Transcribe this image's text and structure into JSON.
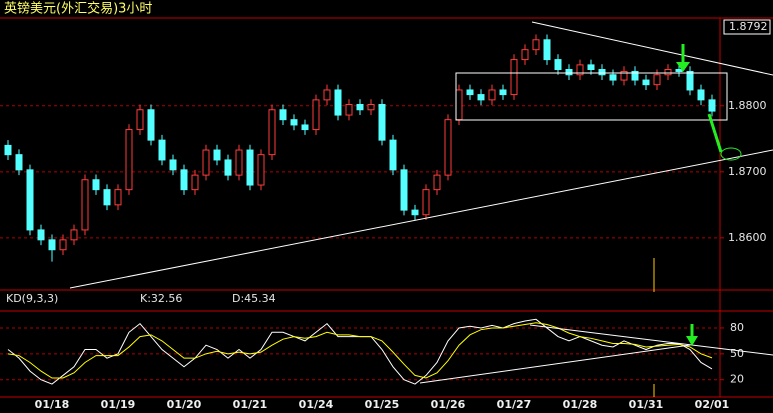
{
  "chart_data": [
    {
      "type": "candlestick",
      "title": "英镑美元(外汇交易)3小时",
      "categories": [
        null,
        null,
        null,
        null,
        "01/18",
        null,
        null,
        null,
        null,
        null,
        "01/19",
        null,
        null,
        null,
        null,
        null,
        "01/20",
        null,
        null,
        null,
        null,
        null,
        "01/21",
        null,
        null,
        null,
        null,
        null,
        "01/24",
        null,
        null,
        null,
        null,
        null,
        "01/25",
        null,
        null,
        null,
        null,
        null,
        "01/26",
        null,
        null,
        null,
        null,
        null,
        "01/27",
        null,
        null,
        null,
        null,
        null,
        "01/28",
        null,
        null,
        null,
        null,
        null,
        "01/31",
        null,
        null,
        null,
        null,
        null,
        "02/01"
      ],
      "open": [
        1.874,
        1.8726,
        1.8703,
        1.8612,
        1.8597,
        1.8582,
        1.8597,
        1.8612,
        1.8688,
        1.8673,
        1.865,
        1.8673,
        1.8764,
        1.8794,
        1.8748,
        1.8718,
        1.8703,
        1.8673,
        1.8695,
        1.8733,
        1.8718,
        1.8695,
        1.8733,
        1.868,
        1.8726,
        1.8794,
        1.8779,
        1.8771,
        1.8764,
        1.8809,
        1.8824,
        1.8786,
        1.8802,
        1.8794,
        1.8802,
        1.8748,
        1.8703,
        1.8642,
        1.8635,
        1.8673,
        1.8695,
        1.8779,
        1.8824,
        1.8817,
        1.8809,
        1.8824,
        1.8817,
        1.887,
        1.8885,
        1.89,
        1.887,
        1.8855,
        1.8847,
        1.8862,
        1.8855,
        1.8847,
        1.8839,
        1.8852,
        1.8839,
        1.8832,
        1.8847,
        1.8855,
        1.8852,
        1.8824,
        1.8809
      ],
      "high": [
        1.8748,
        1.8734,
        1.8711,
        1.862,
        1.8605,
        1.8605,
        1.862,
        1.8696,
        1.8696,
        1.8681,
        1.8681,
        1.8772,
        1.8802,
        1.8802,
        1.8756,
        1.8726,
        1.8711,
        1.8703,
        1.8741,
        1.8741,
        1.8726,
        1.8741,
        1.8741,
        1.8734,
        1.8802,
        1.8802,
        1.8787,
        1.8779,
        1.8817,
        1.8832,
        1.8832,
        1.881,
        1.881,
        1.881,
        1.881,
        1.8756,
        1.8711,
        1.865,
        1.8681,
        1.8703,
        1.8787,
        1.8832,
        1.8832,
        1.8825,
        1.8832,
        1.8832,
        1.8878,
        1.8893,
        1.8908,
        1.8908,
        1.8878,
        1.8863,
        1.887,
        1.887,
        1.8863,
        1.8855,
        1.886,
        1.886,
        1.8847,
        1.8855,
        1.8863,
        1.8863,
        1.886,
        1.8832,
        1.8817
      ],
      "low": [
        1.8718,
        1.8695,
        1.8604,
        1.8589,
        1.8564,
        1.8574,
        1.8589,
        1.8604,
        1.8665,
        1.8642,
        1.8642,
        1.8665,
        1.8756,
        1.874,
        1.871,
        1.8695,
        1.8665,
        1.8665,
        1.8687,
        1.871,
        1.8687,
        1.8687,
        1.8672,
        1.8672,
        1.8718,
        1.8771,
        1.8763,
        1.8756,
        1.8756,
        1.8801,
        1.8778,
        1.8778,
        1.8786,
        1.8786,
        1.874,
        1.8695,
        1.8634,
        1.8627,
        1.8627,
        1.8665,
        1.8687,
        1.8771,
        1.8809,
        1.8801,
        1.8801,
        1.8809,
        1.8809,
        1.8862,
        1.8877,
        1.8862,
        1.8847,
        1.8839,
        1.8839,
        1.8847,
        1.8839,
        1.8831,
        1.8831,
        1.8831,
        1.8824,
        1.8824,
        1.8839,
        1.8844,
        1.8816,
        1.8801,
        1.8784
      ],
      "close": [
        1.8726,
        1.8703,
        1.8612,
        1.8597,
        1.8582,
        1.8597,
        1.8612,
        1.8688,
        1.8673,
        1.865,
        1.8673,
        1.8764,
        1.8794,
        1.8748,
        1.8718,
        1.8703,
        1.8673,
        1.8695,
        1.8733,
        1.8718,
        1.8695,
        1.8733,
        1.868,
        1.8726,
        1.8794,
        1.8779,
        1.8771,
        1.8764,
        1.8809,
        1.8824,
        1.8786,
        1.8802,
        1.8794,
        1.8802,
        1.8748,
        1.8703,
        1.8642,
        1.8635,
        1.8673,
        1.8695,
        1.8779,
        1.8824,
        1.8817,
        1.8809,
        1.8824,
        1.8817,
        1.887,
        1.8885,
        1.89,
        1.887,
        1.8855,
        1.8847,
        1.8862,
        1.8855,
        1.8847,
        1.8839,
        1.8852,
        1.8839,
        1.8832,
        1.8847,
        1.8855,
        1.8852,
        1.8824,
        1.8809,
        1.8792
      ],
      "up_color": "#ff3c3c",
      "down_color": "#54ffff",
      "ylim": [
        1.8521,
        1.8933
      ],
      "yticks": [
        {
          "value": 1.88,
          "label": "1.8800"
        },
        {
          "value": 1.87,
          "label": "1.8700"
        },
        {
          "value": 1.86,
          "label": "1.8600"
        }
      ],
      "grid": true
    },
    {
      "type": "line",
      "title": "KD(9,3,3)",
      "series": [
        {
          "label": "K:32.56",
          "color": "#ffffff",
          "values": [
            55,
            45,
            30,
            20,
            15,
            25,
            35,
            55,
            55,
            45,
            50,
            75,
            85,
            70,
            55,
            45,
            35,
            45,
            60,
            55,
            45,
            55,
            45,
            55,
            75,
            75,
            70,
            65,
            75,
            85,
            70,
            70,
            70,
            70,
            55,
            35,
            20,
            15,
            25,
            40,
            65,
            80,
            82,
            80,
            83,
            80,
            85,
            88,
            90,
            80,
            70,
            65,
            70,
            65,
            60,
            58,
            65,
            60,
            55,
            60,
            62,
            62,
            55,
            40,
            32.56
          ]
        },
        {
          "label": "D:45.34",
          "color": "#ffff00",
          "values": [
            50,
            48,
            40,
            30,
            22,
            22,
            28,
            40,
            48,
            48,
            48,
            58,
            70,
            72,
            65,
            55,
            45,
            45,
            50,
            53,
            50,
            52,
            50,
            52,
            60,
            67,
            70,
            68,
            70,
            75,
            72,
            72,
            70,
            70,
            65,
            52,
            38,
            25,
            22,
            28,
            42,
            60,
            72,
            78,
            80,
            80,
            82,
            84,
            86,
            84,
            80,
            74,
            70,
            68,
            65,
            62,
            62,
            61,
            58,
            59,
            60,
            61,
            58,
            50,
            45.34
          ]
        }
      ],
      "ylim": [
        0,
        95
      ],
      "yticks": [
        80,
        50,
        20
      ],
      "grid": true
    }
  ]
}
